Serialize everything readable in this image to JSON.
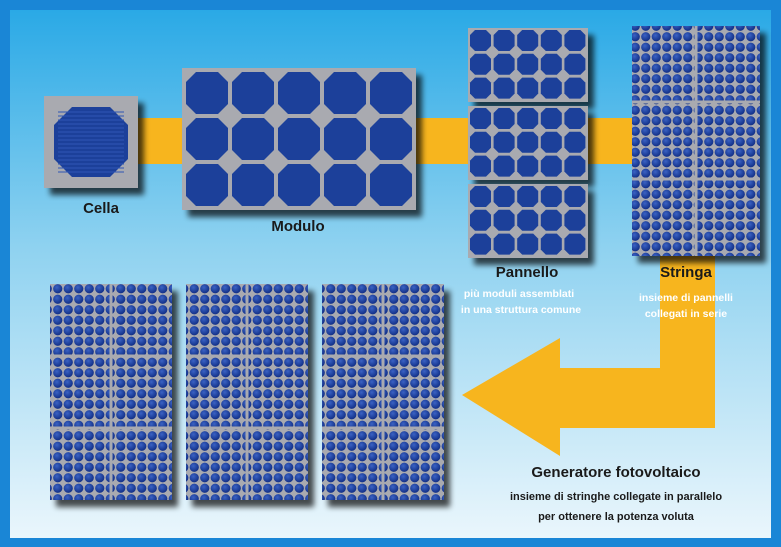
{
  "labels": {
    "cella": "Cella",
    "modulo": "Modulo",
    "pannello": "Pannello",
    "pannello_desc_1": "più moduli assemblati",
    "pannello_desc_2": "in una struttura comune",
    "stringa": "Stringa",
    "stringa_desc_1": "insieme di pannelli",
    "stringa_desc_2": "collegati in serie",
    "generatore": "Generatore fotovoltaico",
    "generatore_desc_1": "insieme di stringhe collegate in parallelo",
    "generatore_desc_2": "per ottenere la potenza voluta"
  },
  "colors": {
    "frame": "#1a86d6",
    "background_top": "#32b2ea",
    "background_bottom": "#e6f4fb",
    "cell_fill": "#1b3f9a",
    "cell_dark": "#0d2a78",
    "cell_background": "#a9aab0",
    "arrow": "#f7b51e",
    "shadow": "#2a2a2a"
  }
}
